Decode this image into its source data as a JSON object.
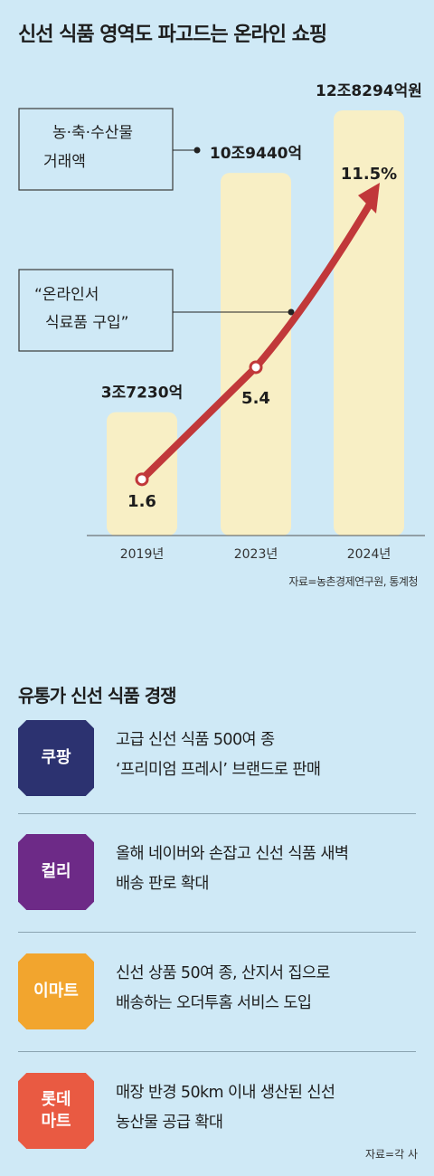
{
  "title": "신선 식품 영역도 파고드는 온라인 쇼핑",
  "chart_data": {
    "type": "bar+line",
    "categories": [
      "2019년",
      "2023년",
      "2024년"
    ],
    "series": [
      {
        "name": "농·축·수산물 거래액",
        "values": [
          37230,
          109440,
          128294
        ],
        "labels": [
          "3조7230억",
          "10조9440억",
          "12조8294억원"
        ]
      },
      {
        "name": "“온라인서 식료품 구입”",
        "values": [
          1.6,
          5.4,
          11.5
        ],
        "labels": [
          "1.6",
          "5.4",
          "11.5%"
        ]
      }
    ],
    "legend": {
      "bar_label_line1": "농·축·수산물",
      "bar_label_line2": "거래액",
      "line_label_line1": "“온라인서",
      "line_label_line2": "식료품 구입”"
    }
  },
  "source": "자료=농촌경제연구원, 통계청",
  "section_title": "유통가 신선 식품 경쟁",
  "companies": [
    {
      "name_line1": "쿠팡",
      "name_line2": "",
      "color": "#2c3270",
      "text_line1": "고급 신선 식품 500여 종",
      "text_line2": "‘프리미엄 프레시’ 브랜드로 판매"
    },
    {
      "name_line1": "컬리",
      "name_line2": "",
      "color": "#6d2a87",
      "text_line1": "올해 네이버와 손잡고 신선 식품 새벽",
      "text_line2": "배송 판로 확대"
    },
    {
      "name_line1": "이마트",
      "name_line2": "",
      "color": "#f2a52e",
      "text_line1": "신선 상품 50여 종, 산지서 집으로",
      "text_line2": "배송하는 오더투홈 서비스 도입"
    },
    {
      "name_line1": "롯데",
      "name_line2": "마트",
      "color": "#e95a42",
      "text_line1": "매장 반경 50km 이내 생산된 신선",
      "text_line2": "농산물 공급 확대"
    }
  ],
  "source2": "자료=각 사",
  "colors": {
    "background": "#cfe9f6",
    "bar": "#f8efc5",
    "line": "#c1383a",
    "text": "#1d1d1d"
  }
}
